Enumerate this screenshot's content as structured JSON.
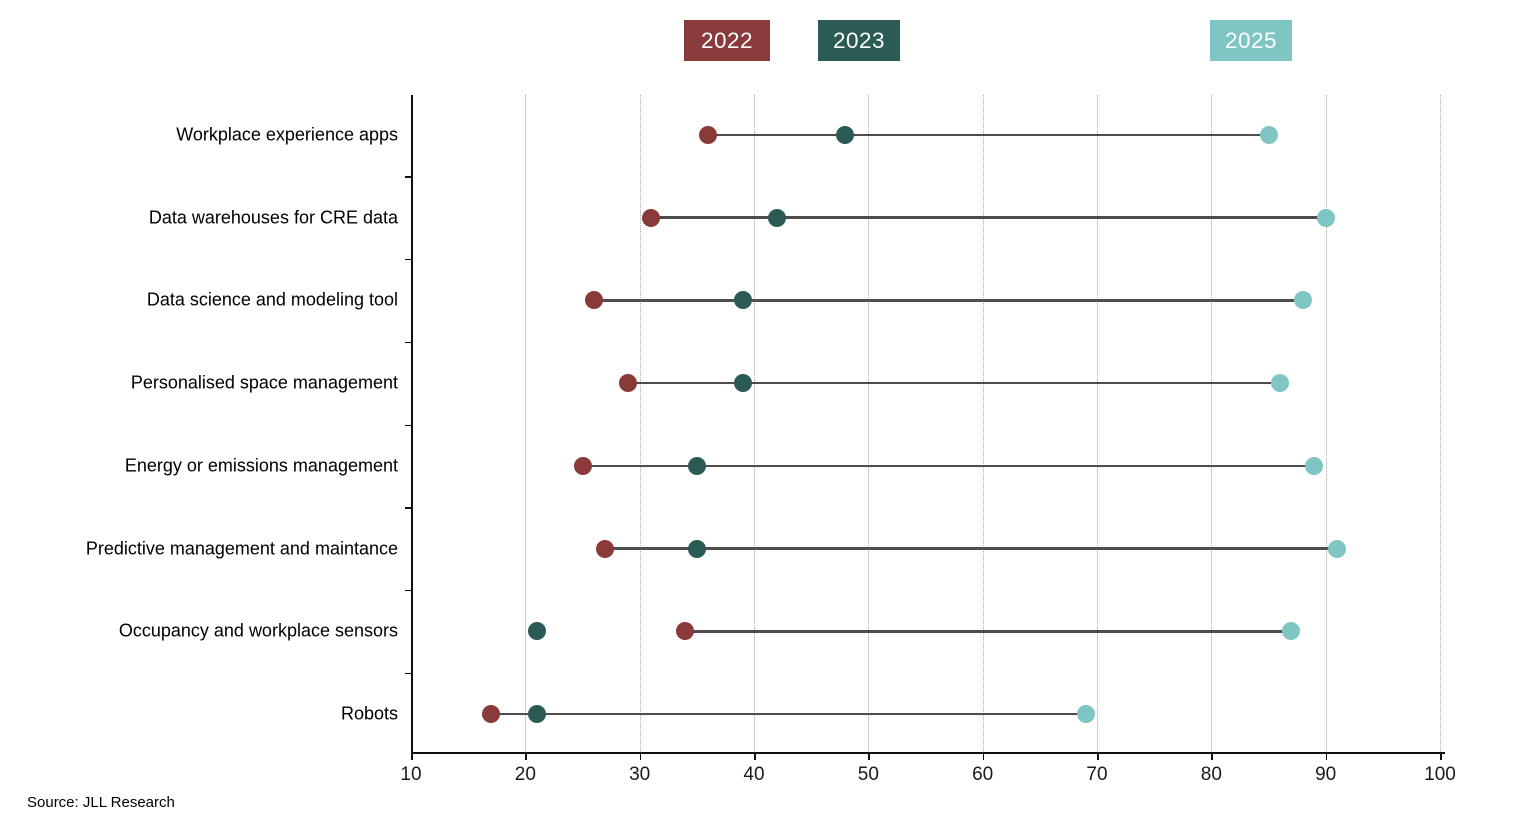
{
  "source_note": "Source: JLL Research",
  "legend": [
    {
      "label": "2022",
      "color": "#8B3A3A"
    },
    {
      "label": "2023",
      "color": "#2C5A54"
    },
    {
      "label": "2025",
      "color": "#7EC5C3"
    }
  ],
  "chart_data": {
    "type": "scatter",
    "subtype": "dumbbell",
    "categories": [
      "Workplace experience apps",
      "Data warehouses for CRE data",
      "Data science and modeling tool",
      "Personalised space management",
      "Energy or emissions management",
      "Predictive management and maintance",
      "Occupancy and workplace sensors",
      "Robots"
    ],
    "series": [
      {
        "name": "2022",
        "color": "#8B3A3A",
        "values": [
          36,
          31,
          26,
          29,
          25,
          27,
          34,
          17
        ]
      },
      {
        "name": "2023",
        "color": "#2C5A54",
        "values": [
          48,
          42,
          39,
          39,
          35,
          35,
          21,
          21
        ]
      },
      {
        "name": "2025",
        "color": "#7EC5C3",
        "values": [
          85,
          90,
          88,
          86,
          89,
          91,
          87,
          69
        ]
      }
    ],
    "connector": {
      "from": "2022",
      "to": "2025",
      "color": "#4d4d4d"
    },
    "x_axis": {
      "min": 10,
      "max": 100,
      "ticks": [
        10,
        20,
        30,
        40,
        50,
        60,
        70,
        80,
        90,
        100
      ]
    },
    "grid": "vertical-dotted",
    "grid_ticks": [
      20,
      30,
      40,
      50,
      60,
      70,
      80,
      90,
      100
    ],
    "legend_position": "top",
    "xlabel": "",
    "ylabel": ""
  }
}
